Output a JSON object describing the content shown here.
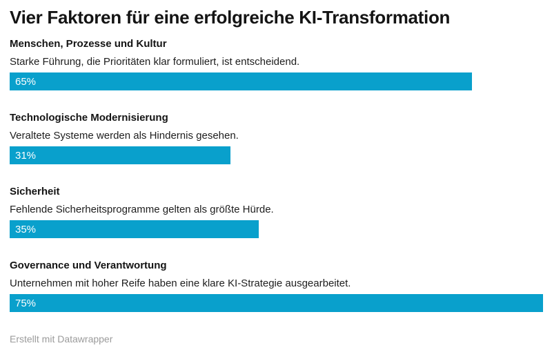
{
  "title": "Vier Faktoren für eine erfolgreiche KI-Transformation",
  "footer": {
    "credit": "Erstellt mit Datawrapper"
  },
  "colors": {
    "bar": "#09a0cc",
    "bar_label": "#ffffff",
    "title_text": "#141414",
    "body_text": "#1d1d1d",
    "footer_text": "#9b9b9b",
    "background": "#ffffff"
  },
  "chart_data": {
    "type": "bar",
    "orientation": "horizontal",
    "title": "Vier Faktoren für eine erfolgreiche KI-Transformation",
    "xlabel": "",
    "ylabel": "",
    "axis_range": [
      0,
      75
    ],
    "grid": false,
    "legend": "none",
    "value_suffix": "%",
    "categories": [
      "Menschen, Prozesse und Kultur",
      "Technologische Modernisierung",
      "Sicherheit",
      "Governance und Verantwortung"
    ],
    "values": [
      65,
      31,
      35,
      75
    ],
    "annotations": [
      "Starke Führung, die Prioritäten klar formuliert, ist entscheidend.",
      "Veraltete Systeme werden als Hindernis gesehen.",
      "Fehlende Sicherheitsprogramme gelten als größte Hürde.",
      "Unternehmen mit hoher Reife haben eine klare KI-Strategie ausgearbeitet."
    ]
  },
  "groups": [
    {
      "label": "Menschen, Prozesse und Kultur",
      "description": "Starke Führung, die Prioritäten klar formuliert, ist entscheidend.",
      "value": 65,
      "value_label": "65%"
    },
    {
      "label": "Technologische Modernisierung",
      "description": "Veraltete Systeme werden als Hindernis gesehen.",
      "value": 31,
      "value_label": "31%"
    },
    {
      "label": "Sicherheit",
      "description": "Fehlende Sicherheitsprogramme gelten als größte Hürde.",
      "value": 35,
      "value_label": "35%"
    },
    {
      "label": "Governance und Verantwortung",
      "description": "Unternehmen mit hoher Reife haben eine klare KI-Strategie ausgearbeitet.",
      "value": 75,
      "value_label": "75%"
    }
  ]
}
